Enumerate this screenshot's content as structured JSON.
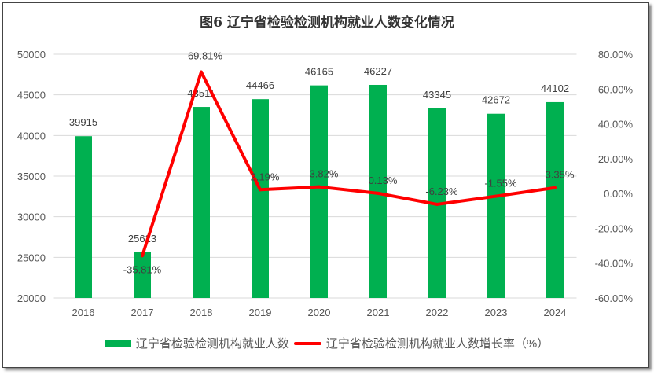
{
  "chart_data": {
    "type": "bar+line",
    "title": "图6  辽宁省检验检测机构就业人数变化情况",
    "categories": [
      "2016",
      "2017",
      "2018",
      "2019",
      "2020",
      "2021",
      "2022",
      "2023",
      "2024"
    ],
    "series": [
      {
        "name": "辽宁省检验检测机构就业人数",
        "type": "bar",
        "axis": "left",
        "color": "#00B050",
        "values": [
          39915,
          25623,
          43511,
          44466,
          46165,
          46227,
          43345,
          42672,
          44102
        ],
        "labels": [
          "39915",
          "25623",
          "43511",
          "44466",
          "46165",
          "46227",
          "43345",
          "42672",
          "44102"
        ]
      },
      {
        "name": "辽宁省检验检测机构就业人数增长率（%）",
        "type": "line",
        "axis": "right",
        "color": "#FF0000",
        "values": [
          null,
          -35.81,
          69.81,
          2.19,
          3.82,
          0.13,
          -6.23,
          -1.55,
          3.35
        ],
        "labels": [
          "",
          "-35.81%",
          "69.81%",
          "2.19%",
          "3.82%",
          "0.13%",
          "-6.23%",
          "-1.55%",
          "3.35%"
        ]
      }
    ],
    "y_left": {
      "min": 20000,
      "max": 50000,
      "step": 5000,
      "ticks": [
        "20000",
        "25000",
        "30000",
        "35000",
        "40000",
        "45000",
        "50000"
      ]
    },
    "y_right": {
      "min": -60,
      "max": 80,
      "step": 20,
      "ticks": [
        "-60.00%",
        "-40.00%",
        "-20.00%",
        "0.00%",
        "20.00%",
        "40.00%",
        "60.00%",
        "80.00%"
      ]
    },
    "grid": true,
    "legend": "bottom"
  }
}
